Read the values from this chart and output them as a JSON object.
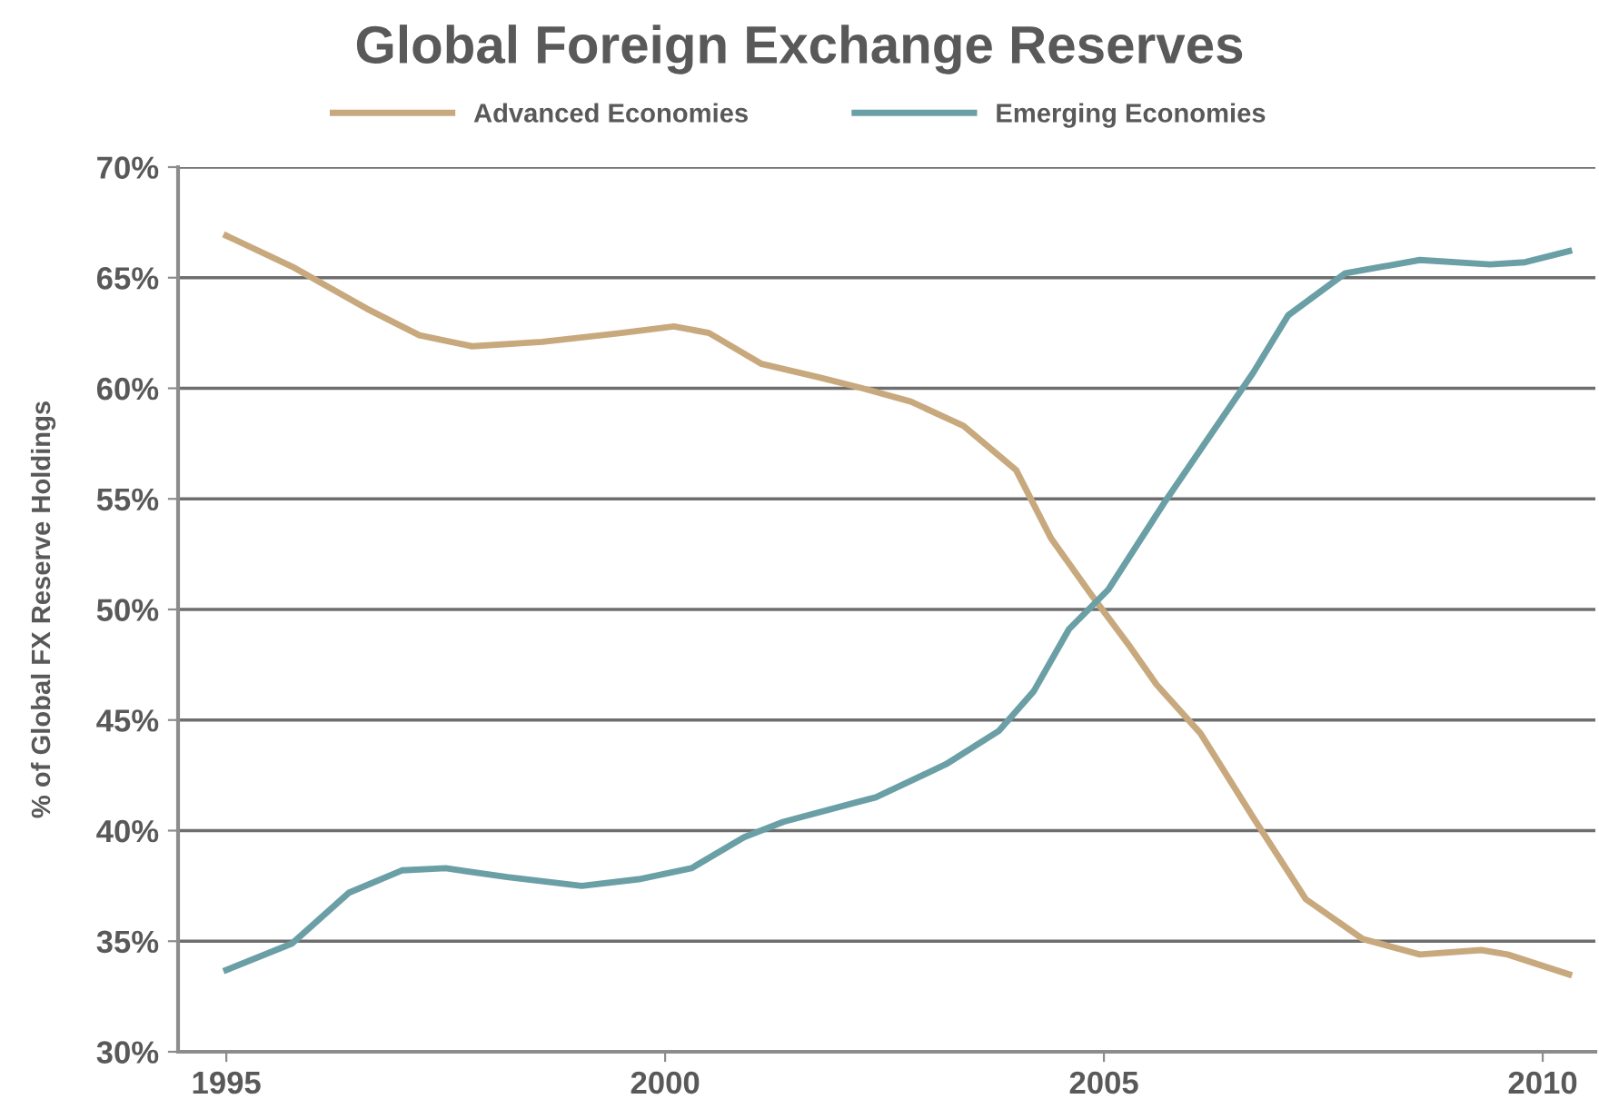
{
  "chart_data": {
    "type": "line",
    "title": "Global Foreign Exchange Reserves",
    "ylabel": "% of Global FX Reserve Holdings",
    "xlim": [
      1994.45,
      2010.6
    ],
    "xticks": [
      1995,
      2000,
      2005,
      2010
    ],
    "ylim": [
      30,
      70
    ],
    "yticks": [
      {
        "value": 30,
        "label": "30%"
      },
      {
        "value": 35,
        "label": "35%"
      },
      {
        "value": 40,
        "label": "40%"
      },
      {
        "value": 45,
        "label": "45%"
      },
      {
        "value": 50,
        "label": "50%"
      },
      {
        "value": 55,
        "label": "55%"
      },
      {
        "value": 60,
        "label": "60%"
      },
      {
        "value": 65,
        "label": "65%"
      },
      {
        "value": 70,
        "label": "70%"
      }
    ],
    "grid": "y",
    "legend": "top",
    "marker": "none",
    "line_style": "solid",
    "series": [
      {
        "name": "Advanced Economies",
        "color": "#c8a97e",
        "x": [
          1995.0,
          1995.75,
          1996.6,
          1997.2,
          1997.8,
          1998.6,
          1999.5,
          2000.1,
          2000.5,
          2001.1,
          2001.75,
          2002.25,
          2002.8,
          2003.4,
          2004.0,
          2004.4,
          2004.85,
          2005.3,
          2005.6,
          2006.1,
          2006.7,
          2007.3,
          2007.95,
          2008.6,
          2009.3,
          2009.6,
          2010.3
        ],
        "values": [
          66.9,
          65.5,
          63.6,
          62.4,
          61.9,
          62.1,
          62.5,
          62.8,
          62.5,
          61.1,
          60.5,
          60.0,
          59.4,
          58.3,
          56.3,
          53.2,
          50.7,
          48.3,
          46.6,
          44.4,
          40.6,
          36.9,
          35.1,
          34.4,
          34.6,
          34.4,
          33.5
        ]
      },
      {
        "name": "Emerging Economies",
        "color": "#6a9fa6",
        "x": [
          1995.0,
          1995.75,
          1996.4,
          1997.0,
          1997.5,
          1998.2,
          1999.05,
          1999.7,
          2000.3,
          2000.9,
          2001.35,
          2002.2,
          2002.4,
          2003.2,
          2003.8,
          2004.2,
          2004.6,
          2005.05,
          2005.7,
          2006.2,
          2006.7,
          2007.1,
          2007.75,
          2008.6,
          2009.4,
          2009.8,
          2010.3
        ],
        "values": [
          33.7,
          34.9,
          37.2,
          38.2,
          38.3,
          37.9,
          37.5,
          37.8,
          38.3,
          39.7,
          40.4,
          41.3,
          41.5,
          43.0,
          44.5,
          46.3,
          49.1,
          50.9,
          54.9,
          57.8,
          60.7,
          63.3,
          65.2,
          65.8,
          65.6,
          65.7,
          66.2
        ]
      }
    ]
  }
}
